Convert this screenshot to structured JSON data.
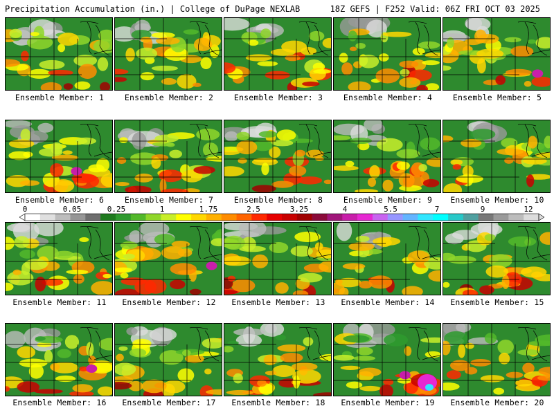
{
  "header": {
    "title_left": "Precipitation Accumulation (in.) | College of DuPage NEXLAB",
    "title_right": "18Z GEFS | F252 Valid: 06Z FRI OCT 03 2025"
  },
  "member_prefix": "Ensemble Member: ",
  "members": [
    {
      "number": "1"
    },
    {
      "number": "2"
    },
    {
      "number": "3"
    },
    {
      "number": "4"
    },
    {
      "number": "5"
    },
    {
      "number": "6"
    },
    {
      "number": "7"
    },
    {
      "number": "8"
    },
    {
      "number": "9"
    },
    {
      "number": "10"
    },
    {
      "number": "11"
    },
    {
      "number": "12"
    },
    {
      "number": "13"
    },
    {
      "number": "14"
    },
    {
      "number": "15"
    },
    {
      "number": "16"
    },
    {
      "number": "17"
    },
    {
      "number": "18"
    },
    {
      "number": "19"
    },
    {
      "number": "20"
    }
  ],
  "colorbar": {
    "labels": [
      "0",
      "0.05",
      "0.25",
      "1",
      "1.75",
      "2.5",
      "3.25",
      "4",
      "5.5",
      "7",
      "9",
      "12"
    ],
    "colors": [
      "#ffffff",
      "#e0e0e0",
      "#bdbdbd",
      "#969696",
      "#6e6e6e",
      "#1e7a1e",
      "#2e9a2e",
      "#52b82a",
      "#8fd62a",
      "#c8ee2a",
      "#ffff00",
      "#ffd700",
      "#ffb000",
      "#ff8c00",
      "#ff6400",
      "#ff2800",
      "#e60000",
      "#c80000",
      "#a00000",
      "#8b0a3a",
      "#a0167a",
      "#c81eaa",
      "#e628d2",
      "#c864f0",
      "#9696ff",
      "#64b4ff",
      "#32e6ff",
      "#00ffff",
      "#28c8c8",
      "#50a0a0",
      "#787878",
      "#9a9a9a",
      "#bcbcbc",
      "#dcdcdc"
    ]
  }
}
